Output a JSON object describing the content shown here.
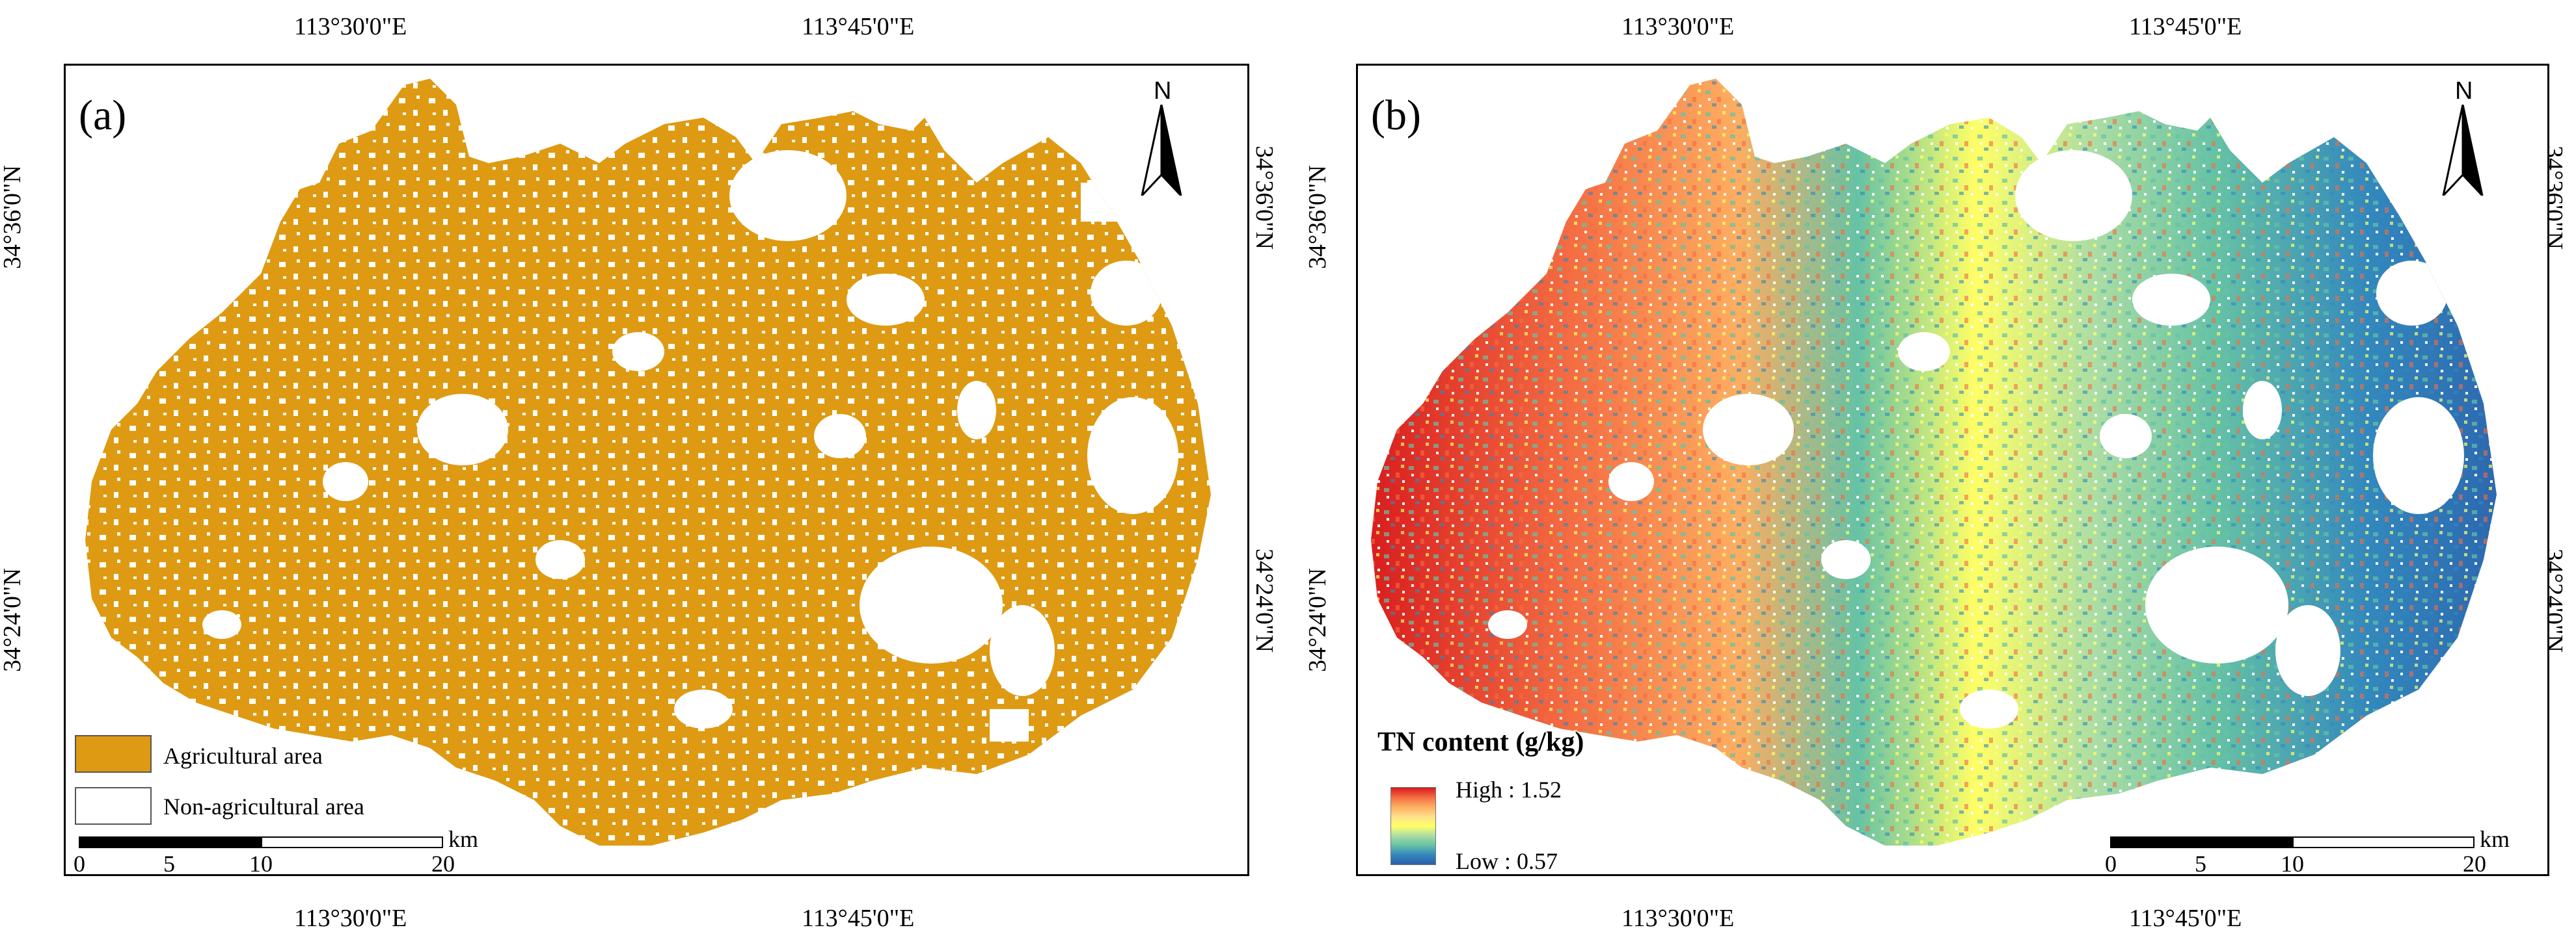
{
  "panels": [
    {
      "label": "(a)",
      "coords": {
        "top_lon": [
          "113°30'0\"E",
          "113°45'0\"E"
        ],
        "bottom_lon": [
          "113°30'0\"E",
          "113°45'0\"E"
        ],
        "left_lat": [
          "34°36'0\"N",
          "34°24'0\"N"
        ],
        "right_lat": [
          "34°36'0\"N",
          "34°24'0\"N"
        ]
      },
      "north": "N",
      "legend": {
        "items": [
          {
            "label": "Agricultural area",
            "color": "#DE9A12"
          },
          {
            "label": "Non-agricultural area",
            "color": "#FFFFFF"
          }
        ]
      },
      "scale": {
        "unit": "km",
        "ticks": [
          "0",
          "5",
          "10",
          "20"
        ]
      }
    },
    {
      "label": "(b)",
      "coords": {
        "top_lon": [
          "113°30'0\"E",
          "113°45'0\"E"
        ],
        "bottom_lon": [
          "113°30'0\"E",
          "113°45'0\"E"
        ],
        "left_lat": [
          "34°36'0\"N",
          "34°24'0\"N"
        ],
        "right_lat": [
          "34°36'0\"N",
          "34°24'0\"N"
        ]
      },
      "north": "N",
      "legend": {
        "title": "TN content (g/kg)",
        "high": "High : 1.52",
        "low": "Low : 0.57",
        "ramp_colors": [
          "#D7191C",
          "#F46D43",
          "#FDAE61",
          "#FEE08B",
          "#FFFF66",
          "#ABDDA4",
          "#66C2A5",
          "#3288BD",
          "#2B5BAA"
        ]
      },
      "scale": {
        "unit": "km",
        "ticks": [
          "0",
          "5",
          "10",
          "20"
        ]
      }
    }
  ],
  "colors": {
    "agricultural": "#DE9A12",
    "frame": "#000000"
  }
}
